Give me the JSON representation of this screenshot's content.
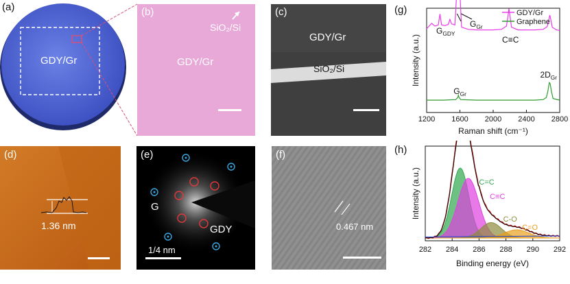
{
  "figure": {
    "a": {
      "label": "(a)",
      "text": "GDY/Gr"
    },
    "b": {
      "label": "(b)",
      "text": "GDY/Gr",
      "substrate": "SiO₂/Si"
    },
    "c": {
      "label": "(c)",
      "text": "GDY/Gr",
      "substrate": "SiO₂/Si"
    },
    "d": {
      "label": "(d)",
      "height": "1.36 nm"
    },
    "e": {
      "label": "(e)",
      "g": "G",
      "gdy": "GDY",
      "scale": "1/4 nm"
    },
    "f": {
      "label": "(f)",
      "spacing": "0.467 nm"
    },
    "colors": {
      "gdy": "#e83ce8",
      "graphene": "#2e9a2e",
      "cc": "#2fa84f",
      "ctc": "#e040e0",
      "co": "#8c8c3c",
      "ceo": "#e8a020",
      "raw": "#c00000"
    }
  },
  "chart_data": [
    {
      "panel": "g",
      "type": "line",
      "label": "(g)",
      "xlabel": "Raman shift (cm⁻¹)",
      "ylabel": "Intensity (a.u.)",
      "xlim": [
        1200,
        2800
      ],
      "xticks": [
        "1200",
        "1600",
        "2000",
        "2400",
        "2800"
      ],
      "legend": [
        "GDY/Gr",
        "Graphene"
      ],
      "legend_position": "top-right",
      "annotations": {
        "g_gdy": "G",
        "g_gdy_sub": "GDY",
        "g_gr": "G",
        "g_gr_sub": "Gr",
        "cc": "C≡C",
        "g_gr2": "G",
        "g_gr2_sub": "Gr",
        "d2": "2D",
        "d2_sub": "Gr"
      },
      "series": [
        {
          "name": "GDY/Gr",
          "x": [
            1200,
            1260,
            1300,
            1340,
            1360,
            1380,
            1420,
            1460,
            1480,
            1500,
            1540,
            1565,
            1575,
            1582,
            1590,
            1600,
            1620,
            1700,
            1800,
            1900,
            2000,
            2100,
            2160,
            2180,
            2190,
            2200,
            2220,
            2300,
            2400,
            2500,
            2600,
            2650,
            2670,
            2680,
            2690,
            2710,
            2760,
            2800
          ],
          "y": [
            0.05,
            0.15,
            0.1,
            0.12,
            0.32,
            0.12,
            0.11,
            0.13,
            0.22,
            0.14,
            0.12,
            0.8,
            0.97,
            0.8,
            0.98,
            0.72,
            0.08,
            0.04,
            0.03,
            0.03,
            0.03,
            0.04,
            0.1,
            0.3,
            0.42,
            0.3,
            0.08,
            0.03,
            0.03,
            0.03,
            0.04,
            0.09,
            0.22,
            0.3,
            0.24,
            0.08,
            0.03,
            0.02
          ]
        },
        {
          "name": "Graphene",
          "x": [
            1200,
            1400,
            1550,
            1575,
            1582,
            1590,
            1610,
            1800,
            2000,
            2200,
            2400,
            2500,
            2600,
            2640,
            2660,
            2675,
            2685,
            2700,
            2720,
            2800
          ],
          "y": [
            0.0,
            0.0,
            0.01,
            0.05,
            0.09,
            0.05,
            0.01,
            0.0,
            0.0,
            0.0,
            0.0,
            0.0,
            0.01,
            0.05,
            0.18,
            0.32,
            0.3,
            0.16,
            0.03,
            0.0
          ]
        }
      ]
    },
    {
      "panel": "h",
      "type": "area",
      "label": "(h)",
      "xlabel": "Binding energy (eV)",
      "ylabel": "Intensity (a.u.)",
      "xlim": [
        282,
        292
      ],
      "xticks": [
        "282",
        "284",
        "286",
        "288",
        "290",
        "292"
      ],
      "series": [
        {
          "name": "C=C",
          "center": 284.6,
          "height": 0.68,
          "width": 0.9
        },
        {
          "name": "C≡C",
          "center": 285.2,
          "height": 0.58,
          "width": 1.1
        },
        {
          "name": "C-O",
          "center": 286.9,
          "height": 0.15,
          "width": 1.1
        },
        {
          "name": "C=O",
          "center": 288.8,
          "height": 0.08,
          "width": 1.3
        }
      ]
    }
  ]
}
